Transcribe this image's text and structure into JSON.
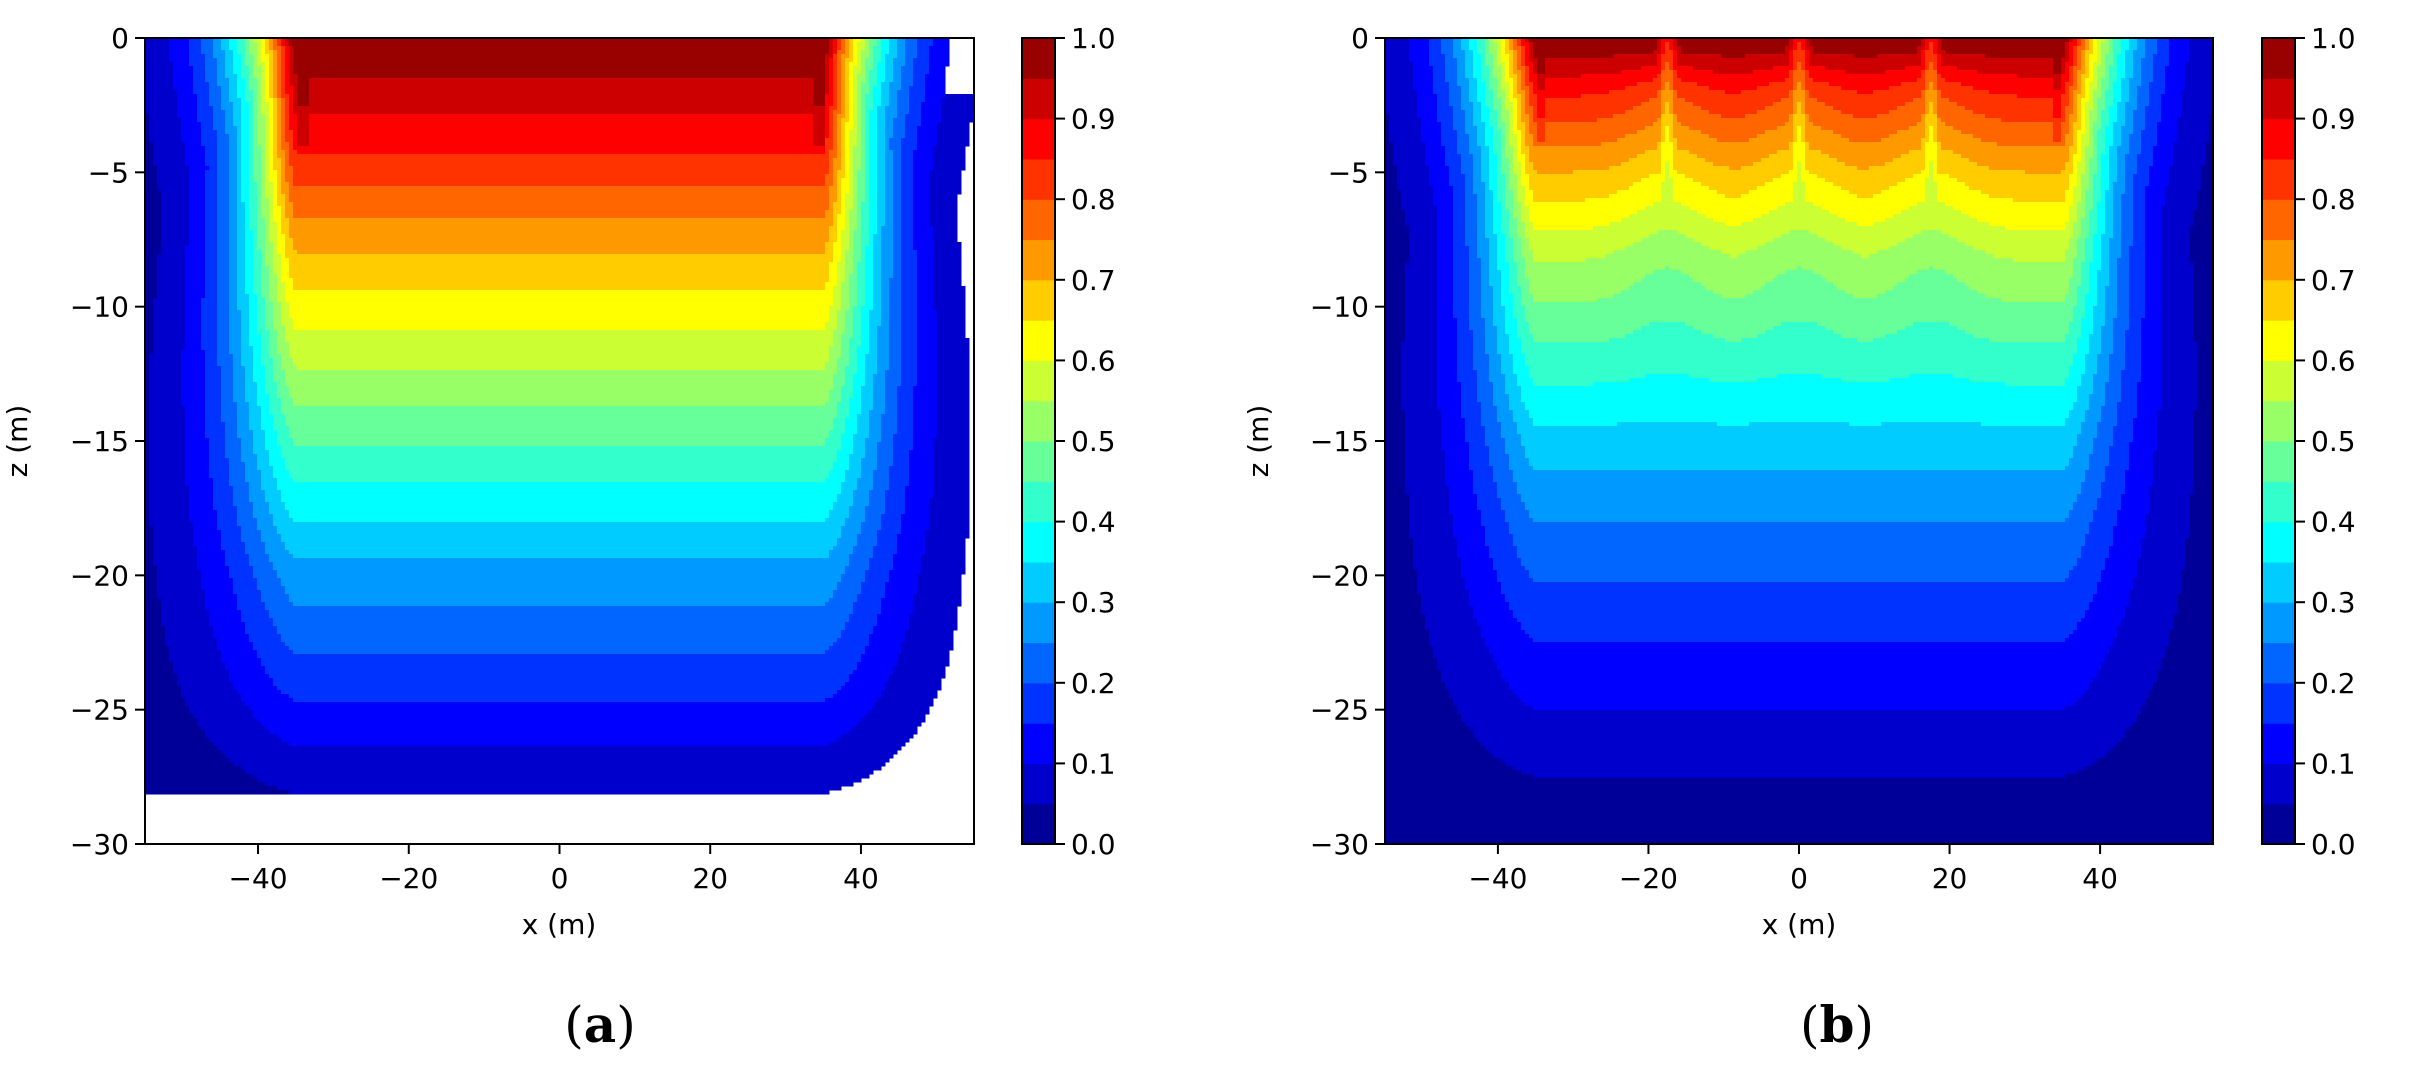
{
  "figure": {
    "colormap": "jet",
    "colormap_stops": [
      "#00007f",
      "#0000ff",
      "#007fff",
      "#00ffff",
      "#7fff7f",
      "#ffff00",
      "#ff7f00",
      "#ff0000",
      "#7f0000"
    ]
  },
  "chart_data": [
    {
      "type": "heatmap",
      "subtype": "filled-contour",
      "caption": {
        "open": "(",
        "letter": "a",
        "close": ")"
      },
      "xlabel": "x (m)",
      "ylabel": "z (m)",
      "xlim": [
        -55,
        55
      ],
      "ylim": [
        -30,
        0
      ],
      "xticks": [
        -40,
        -20,
        0,
        20,
        40
      ],
      "xtick_labels": [
        "−40",
        "−20",
        "0",
        "20",
        "40"
      ],
      "yticks": [
        0,
        -5,
        -10,
        -15,
        -20,
        -25,
        -30
      ],
      "ytick_labels": [
        "0",
        "−5",
        "−10",
        "−15",
        "−20",
        "−25",
        "−30"
      ],
      "colorbar": {
        "range": [
          0,
          1
        ],
        "ticks": [
          0,
          0.1,
          0.2,
          0.3,
          0.4,
          0.5,
          0.6,
          0.7,
          0.8,
          0.9,
          1.0
        ],
        "tick_labels": [
          "0.0",
          "0.1",
          "0.2",
          "0.3",
          "0.4",
          "0.5",
          "0.6",
          "0.7",
          "0.8",
          "0.9",
          "1.0"
        ]
      },
      "levels": 20,
      "field": {
        "source_half_width": 35,
        "source_depth": 4,
        "lateral_decay_m": 6.5,
        "vertical_profile": [
          [
            0,
            1.0
          ],
          [
            4,
            0.86
          ],
          [
            8,
            0.7
          ],
          [
            12,
            0.56
          ],
          [
            16,
            0.42
          ],
          [
            20,
            0.28
          ],
          [
            24,
            0.17
          ],
          [
            27,
            0.08
          ],
          [
            29,
            0.025
          ],
          [
            30,
            0.0
          ]
        ],
        "divider_x": []
      }
    },
    {
      "type": "heatmap",
      "subtype": "filled-contour",
      "caption": {
        "open": "(",
        "letter": "b",
        "close": ")"
      },
      "xlabel": "x (m)",
      "ylabel": "z (m)",
      "xlim": [
        -55,
        55
      ],
      "ylim": [
        -30,
        0
      ],
      "xticks": [
        -40,
        -20,
        0,
        20,
        40
      ],
      "xtick_labels": [
        "−40",
        "−20",
        "0",
        "20",
        "40"
      ],
      "yticks": [
        0,
        -5,
        -10,
        -15,
        -20,
        -25,
        -30
      ],
      "ytick_labels": [
        "0",
        "−5",
        "−10",
        "−15",
        "−20",
        "−25",
        "−30"
      ],
      "colorbar": {
        "range": [
          0,
          1
        ],
        "ticks": [
          0,
          0.1,
          0.2,
          0.3,
          0.4,
          0.5,
          0.6,
          0.7,
          0.8,
          0.9,
          1.0
        ],
        "tick_labels": [
          "0.0",
          "0.1",
          "0.2",
          "0.3",
          "0.4",
          "0.5",
          "0.6",
          "0.7",
          "0.8",
          "0.9",
          "1.0"
        ]
      },
      "levels": 20,
      "field": {
        "source_half_width": 35,
        "source_depth": 4,
        "lateral_decay_m": 6.5,
        "vertical_profile": [
          [
            0,
            1.0
          ],
          [
            2,
            0.86
          ],
          [
            5,
            0.7
          ],
          [
            8,
            0.56
          ],
          [
            12,
            0.43
          ],
          [
            15,
            0.33
          ],
          [
            18,
            0.25
          ],
          [
            22,
            0.16
          ],
          [
            26,
            0.08
          ],
          [
            28.5,
            0.03
          ],
          [
            30,
            0.0
          ]
        ],
        "divider_x": [
          -17.5,
          0,
          17.5
        ]
      }
    }
  ]
}
